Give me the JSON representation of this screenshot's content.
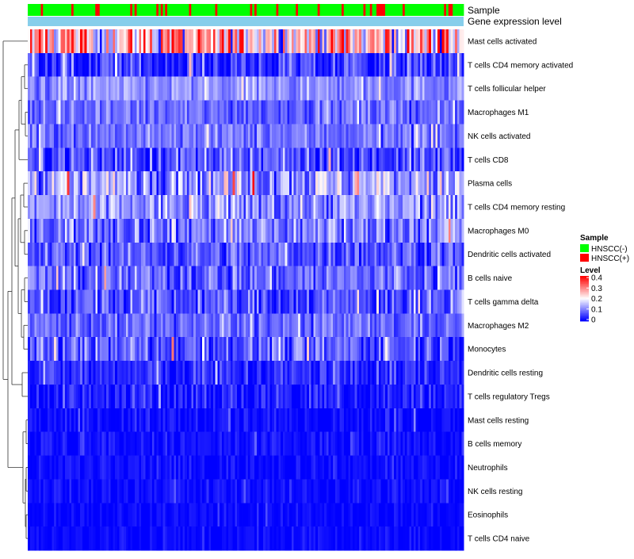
{
  "chart_data": {
    "type": "heatmap",
    "title": "",
    "annotation_tracks": [
      "Sample",
      "Gene expression level"
    ],
    "rows": [
      {
        "label": "Mast cells activated",
        "mean": 0.24,
        "spread": 0.17
      },
      {
        "label": "T cells CD4 memory activated",
        "mean": 0.04,
        "spread": 0.07
      },
      {
        "label": "T cells follicular helper",
        "mean": 0.11,
        "spread": 0.05
      },
      {
        "label": "Macrophages M1",
        "mean": 0.08,
        "spread": 0.05
      },
      {
        "label": "NK cells activated",
        "mean": 0.09,
        "spread": 0.05
      },
      {
        "label": "T cells CD8",
        "mean": 0.06,
        "spread": 0.07
      },
      {
        "label": "Plasma cells",
        "mean": 0.13,
        "spread": 0.1
      },
      {
        "label": "T cells CD4 memory resting",
        "mean": 0.11,
        "spread": 0.08
      },
      {
        "label": "Macrophages M0",
        "mean": 0.1,
        "spread": 0.08
      },
      {
        "label": "Dendritic cells activated",
        "mean": 0.07,
        "spread": 0.06
      },
      {
        "label": "B cells naive",
        "mean": 0.08,
        "spread": 0.07
      },
      {
        "label": "T cells gamma delta",
        "mean": 0.06,
        "spread": 0.07
      },
      {
        "label": "Macrophages M2",
        "mean": 0.08,
        "spread": 0.05
      },
      {
        "label": "Monocytes",
        "mean": 0.07,
        "spread": 0.07
      },
      {
        "label": "Dendritic cells resting",
        "mean": 0.03,
        "spread": 0.05
      },
      {
        "label": "T cells regulatory  Tregs",
        "mean": 0.02,
        "spread": 0.05
      },
      {
        "label": "Mast cells resting",
        "mean": 0.01,
        "spread": 0.03
      },
      {
        "label": "B cells memory",
        "mean": 0.01,
        "spread": 0.03
      },
      {
        "label": "Neutrophils",
        "mean": 0.01,
        "spread": 0.025
      },
      {
        "label": "NK cells resting",
        "mean": 0.01,
        "spread": 0.025
      },
      {
        "label": "Eosinophils",
        "mean": 0.005,
        "spread": 0.02
      },
      {
        "label": "T cells CD4 naive",
        "mean": 0.005,
        "spread": 0.02
      }
    ],
    "n_samples": 200,
    "sample_groups": [
      {
        "name": "HNSCC(-)",
        "color": "#00FF00",
        "share": 0.82
      },
      {
        "name": "HNSCC(+)",
        "color": "#FF0000",
        "share": 0.18
      }
    ],
    "color_scale": {
      "title": "Level",
      "min": 0,
      "max": 0.4,
      "ticks": [
        "0.4",
        "0.3",
        "0.2",
        "0.1",
        "0"
      ],
      "low_color": "#0000FF",
      "mid_color": "#FFFFFF",
      "high_color": "#FF0000"
    },
    "expression_track_color": "#87CEEB",
    "legend": {
      "sample_title": "Sample",
      "level_title": "Level",
      "placement": "right"
    }
  }
}
